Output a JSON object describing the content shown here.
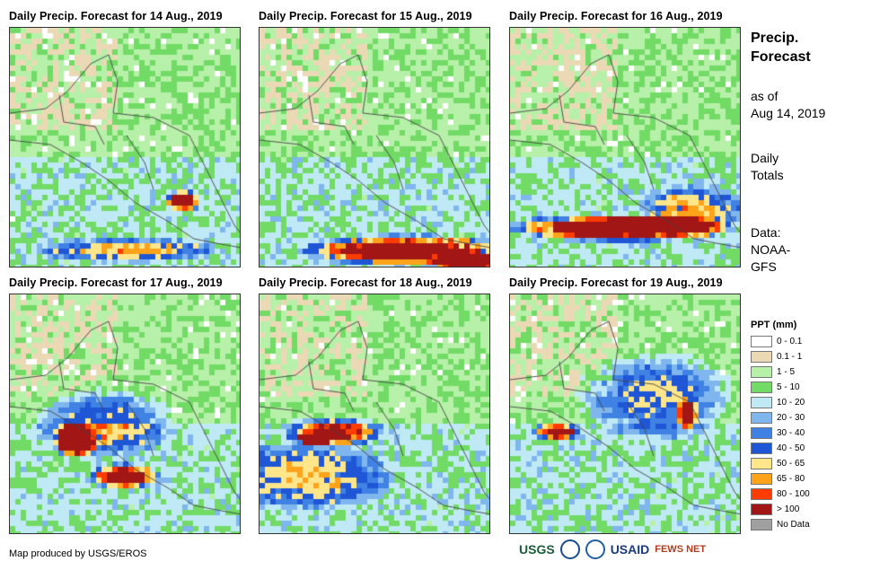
{
  "panels": [
    {
      "title": "Daily Precip. Forecast for 14 Aug., 2019"
    },
    {
      "title": "Daily Precip. Forecast for 15 Aug., 2019"
    },
    {
      "title": "Daily Precip. Forecast for 16 Aug., 2019"
    },
    {
      "title": "Daily Precip. Forecast for 17 Aug., 2019"
    },
    {
      "title": "Daily Precip. Forecast for 18 Aug., 2019"
    },
    {
      "title": "Daily Precip. Forecast for 19 Aug., 2019"
    }
  ],
  "side": {
    "title_line1": "Precip.",
    "title_line2": "Forecast",
    "asof_line1": "as of",
    "asof_line2": "Aug 14, 2019",
    "totals_line1": "Daily",
    "totals_line2": "Totals",
    "data_line1": "Data:",
    "data_line2": "NOAA-",
    "data_line3": "GFS"
  },
  "legend": {
    "title": "PPT (mm)",
    "items": [
      {
        "label": "0 - 0.1",
        "color": "#ffffff"
      },
      {
        "label": "0.1 - 1",
        "color": "#ebd9b6"
      },
      {
        "label": "1 - 5",
        "color": "#b7f0a8"
      },
      {
        "label": "5 - 10",
        "color": "#72db66"
      },
      {
        "label": "10 - 20",
        "color": "#bfeaf5"
      },
      {
        "label": "20 - 30",
        "color": "#7fb6ee"
      },
      {
        "label": "30 - 40",
        "color": "#3f82e3"
      },
      {
        "label": "40 - 50",
        "color": "#1e56d6"
      },
      {
        "label": "50 - 65",
        "color": "#ffe68a"
      },
      {
        "label": "65 - 80",
        "color": "#ffa31a"
      },
      {
        "label": "80 - 100",
        "color": "#ff3c00"
      },
      {
        "label": "> 100",
        "color": "#a31616"
      },
      {
        "label": "No Data",
        "color": "#a0a0a0"
      }
    ]
  },
  "credit": "Map produced by USGS/EROS",
  "logos": {
    "usgs": "USGS",
    "usaid": "USAID",
    "fewsnet": "FEWS NET"
  }
}
